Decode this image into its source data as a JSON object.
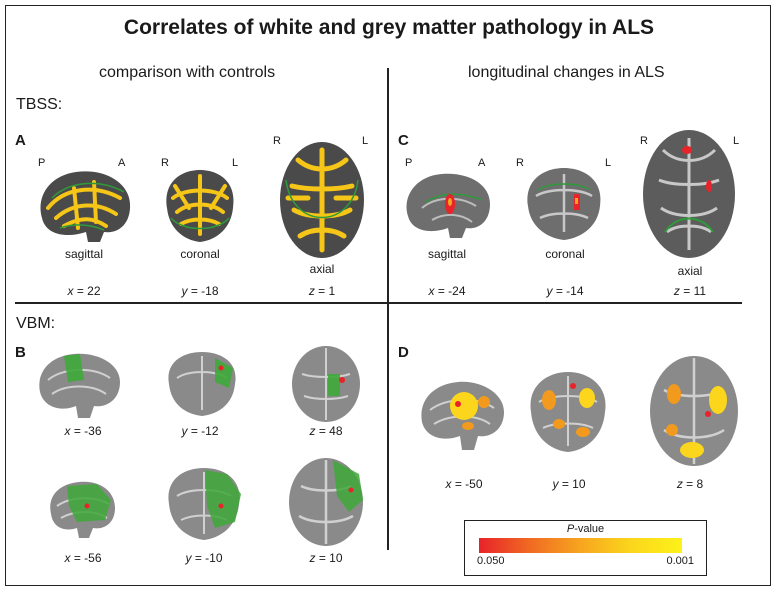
{
  "title": "Correlates of white and grey matter pathology in ALS",
  "left_heading": "comparison with controls",
  "right_heading": "longitudinal changes in ALS",
  "sections": {
    "tbss": "TBSS:",
    "vbm": "VBM:"
  },
  "panels": {
    "a": "A",
    "b": "B",
    "c": "C",
    "d": "D"
  },
  "tbss_controls": {
    "orient": {
      "sag_p": "P",
      "sag_a": "A",
      "cor_r": "R",
      "cor_l": "L",
      "ax_r": "R",
      "ax_l": "L"
    },
    "views": [
      "sagittal",
      "coronal",
      "axial"
    ],
    "coords": [
      {
        "axis": "x",
        "value": "= 22"
      },
      {
        "axis": "y",
        "value": "= -18"
      },
      {
        "axis": "z",
        "value": "= 1"
      }
    ]
  },
  "tbss_longitudinal": {
    "orient": {
      "sag_p": "P",
      "sag_a": "A",
      "cor_r": "R",
      "cor_l": "L",
      "ax_r": "R",
      "ax_l": "L"
    },
    "views": [
      "sagittal",
      "coronal",
      "axial"
    ],
    "coords": [
      {
        "axis": "x",
        "value": "= -24"
      },
      {
        "axis": "y",
        "value": "= -14"
      },
      {
        "axis": "z",
        "value": "= 11"
      }
    ]
  },
  "vbm_controls": {
    "row1": [
      {
        "axis": "x",
        "value": "= -36"
      },
      {
        "axis": "y",
        "value": "= -12"
      },
      {
        "axis": "z",
        "value": "= 48"
      }
    ],
    "row2": [
      {
        "axis": "x",
        "value": "= -56"
      },
      {
        "axis": "y",
        "value": "= -10"
      },
      {
        "axis": "z",
        "value": "= 10"
      }
    ]
  },
  "vbm_longitudinal": {
    "coords": [
      {
        "axis": "x",
        "value": "= -50"
      },
      {
        "axis": "y",
        "value": "= 10"
      },
      {
        "axis": "z",
        "value": "= 8"
      }
    ]
  },
  "legend": {
    "title_italic": "P",
    "title_rest": "-value",
    "min": "0.050",
    "max": "0.001"
  },
  "colors": {
    "wm_skeleton": "#2e9b3a",
    "tbss_effect": "#f5c518",
    "vbm_control_effect": "#3ea83a",
    "vbm_long_effect": "#f29a1e"
  }
}
